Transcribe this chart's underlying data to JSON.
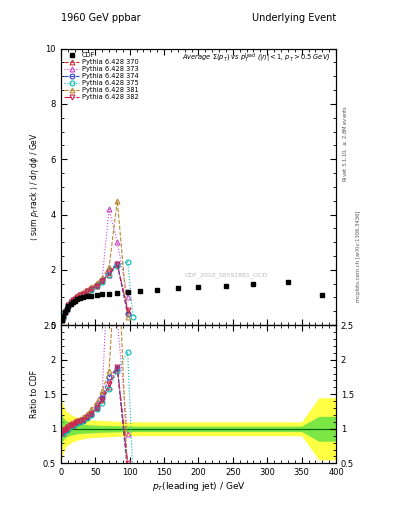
{
  "title_left": "1960 GeV ppbar",
  "title_right": "Underlying Event",
  "plot_title": "Average $\\Sigma(p_T)$ vs $p_T^{\\rm lead}$ ($|\\eta| < 1$, $p_T > 0.5$ GeV)",
  "ylabel_main": "$\\langle$ sum $p_T$rack $\\rangle$ / d$\\eta$ d$\\phi$ / GeV",
  "ylabel_ratio": "Ratio to CDF",
  "xlabel": "$p_T$(leading jet) / GeV",
  "watermark": "CDF_2010_S8591881_OCD",
  "rivet_text": "Rivet 3.1.10, $\\geq$ 2.8M events",
  "mcplots_text": "mcplots.cern.ch [arXiv:1306.3436]",
  "xlim": [
    0,
    400
  ],
  "ylim_main": [
    0,
    10
  ],
  "ylim_ratio": [
    0.5,
    2.5
  ],
  "ratio_yticks": [
    0.5,
    1.0,
    1.5,
    2.0,
    2.5
  ],
  "cdf_x": [
    1.5,
    3.5,
    6,
    8.5,
    11,
    14,
    17,
    20,
    24,
    28,
    32,
    38,
    44,
    52,
    60,
    70,
    82,
    97,
    115,
    140,
    170,
    200,
    240,
    280,
    330,
    380
  ],
  "cdf_y": [
    0.18,
    0.32,
    0.48,
    0.6,
    0.7,
    0.78,
    0.85,
    0.89,
    0.94,
    0.98,
    1.01,
    1.04,
    1.07,
    1.09,
    1.12,
    1.14,
    1.17,
    1.19,
    1.22,
    1.27,
    1.33,
    1.38,
    1.42,
    1.48,
    1.55,
    1.08
  ],
  "pythia_370_x": [
    1.5,
    3.5,
    6,
    8.5,
    11,
    14,
    17,
    20,
    24,
    28,
    32,
    38,
    44,
    52,
    60,
    70,
    82,
    97
  ],
  "pythia_370_y": [
    0.17,
    0.3,
    0.47,
    0.6,
    0.72,
    0.82,
    0.9,
    0.96,
    1.03,
    1.09,
    1.14,
    1.22,
    1.3,
    1.42,
    1.58,
    1.82,
    2.2,
    0.52
  ],
  "pythia_373_x": [
    1.5,
    3.5,
    6,
    8.5,
    11,
    14,
    17,
    20,
    24,
    28,
    32,
    38,
    44,
    52,
    60,
    70,
    82,
    97
  ],
  "pythia_373_y": [
    0.17,
    0.31,
    0.47,
    0.6,
    0.73,
    0.83,
    0.91,
    0.97,
    1.04,
    1.1,
    1.15,
    1.24,
    1.33,
    1.48,
    1.68,
    4.2,
    3.0,
    1.0
  ],
  "pythia_374_x": [
    1.5,
    3.5,
    6,
    8.5,
    11,
    14,
    17,
    20,
    24,
    28,
    32,
    38,
    44,
    52,
    60,
    70,
    82,
    97
  ],
  "pythia_374_y": [
    0.17,
    0.31,
    0.47,
    0.6,
    0.72,
    0.82,
    0.9,
    0.96,
    1.03,
    1.09,
    1.14,
    1.22,
    1.3,
    1.44,
    1.62,
    2.0,
    2.2,
    0.4
  ],
  "pythia_375_x": [
    1.5,
    3.5,
    6,
    8.5,
    11,
    14,
    17,
    20,
    24,
    28,
    32,
    38,
    44,
    52,
    60,
    70,
    82,
    97,
    105
  ],
  "pythia_375_y": [
    0.17,
    0.3,
    0.47,
    0.59,
    0.71,
    0.81,
    0.89,
    0.95,
    1.02,
    1.08,
    1.13,
    1.2,
    1.28,
    1.4,
    1.55,
    1.8,
    2.15,
    2.3,
    0.3
  ],
  "pythia_381_x": [
    1.5,
    3.5,
    6,
    8.5,
    11,
    14,
    17,
    20,
    24,
    28,
    32,
    38,
    44,
    52,
    60,
    70,
    82,
    97
  ],
  "pythia_381_y": [
    0.18,
    0.32,
    0.49,
    0.62,
    0.74,
    0.84,
    0.92,
    0.99,
    1.06,
    1.12,
    1.18,
    1.27,
    1.37,
    1.52,
    1.72,
    2.1,
    4.5,
    0.28
  ],
  "pythia_382_x": [
    1.5,
    3.5,
    6,
    8.5,
    11,
    14,
    17,
    20,
    24,
    28,
    32,
    38,
    44,
    52,
    60,
    70,
    82,
    97
  ],
  "pythia_382_y": [
    0.17,
    0.31,
    0.47,
    0.6,
    0.72,
    0.82,
    0.9,
    0.96,
    1.03,
    1.09,
    1.14,
    1.22,
    1.3,
    1.42,
    1.59,
    1.88,
    2.22,
    0.55
  ],
  "ratio_370_x": [
    1.5,
    3.5,
    6,
    8.5,
    11,
    14,
    17,
    20,
    24,
    28,
    32,
    38,
    44,
    52,
    60,
    70,
    82,
    97
  ],
  "ratio_370_y": [
    0.94,
    0.94,
    0.98,
    1.0,
    1.03,
    1.05,
    1.06,
    1.08,
    1.1,
    1.11,
    1.13,
    1.17,
    1.21,
    1.3,
    1.41,
    1.6,
    1.88,
    0.48
  ],
  "ratio_373_x": [
    1.5,
    3.5,
    6,
    8.5,
    11,
    14,
    17,
    20,
    24,
    28,
    32,
    38,
    44,
    52,
    60,
    70,
    82,
    97
  ],
  "ratio_373_y": [
    0.94,
    0.97,
    0.98,
    1.0,
    1.04,
    1.06,
    1.07,
    1.09,
    1.11,
    1.12,
    1.14,
    1.19,
    1.24,
    1.36,
    1.5,
    3.68,
    2.56,
    0.93
  ],
  "ratio_374_x": [
    1.5,
    3.5,
    6,
    8.5,
    11,
    14,
    17,
    20,
    24,
    28,
    32,
    38,
    44,
    52,
    60,
    70,
    82,
    97
  ],
  "ratio_374_y": [
    0.94,
    0.97,
    0.98,
    1.0,
    1.03,
    1.05,
    1.06,
    1.08,
    1.1,
    1.11,
    1.13,
    1.17,
    1.21,
    1.32,
    1.45,
    1.75,
    1.88,
    0.37
  ],
  "ratio_375_x": [
    1.5,
    3.5,
    6,
    8.5,
    11,
    14,
    17,
    20,
    24,
    28,
    32,
    38,
    44,
    52,
    60,
    70,
    82,
    97,
    105
  ],
  "ratio_375_y": [
    0.94,
    0.94,
    0.98,
    0.98,
    1.01,
    1.04,
    1.05,
    1.07,
    1.09,
    1.1,
    1.12,
    1.16,
    1.2,
    1.28,
    1.38,
    1.58,
    1.84,
    2.11,
    0.28
  ],
  "ratio_381_x": [
    1.5,
    3.5,
    6,
    8.5,
    11,
    14,
    17,
    20,
    24,
    28,
    32,
    38,
    44,
    52,
    60,
    70,
    82,
    97
  ],
  "ratio_381_y": [
    1.0,
    1.0,
    1.02,
    1.03,
    1.06,
    1.08,
    1.08,
    1.11,
    1.13,
    1.14,
    1.17,
    1.22,
    1.28,
    1.39,
    1.54,
    1.84,
    3.85,
    0.26
  ],
  "ratio_382_x": [
    1.5,
    3.5,
    6,
    8.5,
    11,
    14,
    17,
    20,
    24,
    28,
    32,
    38,
    44,
    52,
    60,
    70,
    82,
    97
  ],
  "ratio_382_y": [
    0.94,
    0.97,
    0.98,
    1.0,
    1.03,
    1.05,
    1.06,
    1.08,
    1.1,
    1.11,
    1.13,
    1.17,
    1.21,
    1.3,
    1.42,
    1.65,
    1.9,
    0.51
  ],
  "colors": {
    "cdf": "#000000",
    "370": "#cc3333",
    "373": "#cc44cc",
    "374": "#3344cc",
    "375": "#00bbbb",
    "381": "#bb8833",
    "382": "#cc2255"
  },
  "green_band_x": [
    0,
    2,
    7,
    15,
    25,
    40,
    60,
    100,
    150,
    200,
    250,
    300,
    350,
    375,
    400
  ],
  "green_band_low": [
    0.75,
    0.82,
    0.88,
    0.91,
    0.93,
    0.94,
    0.95,
    0.96,
    0.96,
    0.96,
    0.96,
    0.96,
    0.96,
    0.82,
    0.82
  ],
  "green_band_high": [
    1.25,
    1.18,
    1.12,
    1.09,
    1.07,
    1.06,
    1.05,
    1.04,
    1.04,
    1.04,
    1.04,
    1.04,
    1.04,
    1.18,
    1.18
  ],
  "yellow_band_x": [
    0,
    2,
    7,
    15,
    25,
    40,
    60,
    100,
    150,
    200,
    250,
    300,
    350,
    375,
    400
  ],
  "yellow_band_low": [
    0.5,
    0.62,
    0.74,
    0.8,
    0.84,
    0.87,
    0.88,
    0.9,
    0.9,
    0.9,
    0.9,
    0.9,
    0.9,
    0.55,
    0.55
  ],
  "yellow_band_high": [
    1.5,
    1.38,
    1.26,
    1.2,
    1.16,
    1.13,
    1.12,
    1.1,
    1.1,
    1.1,
    1.1,
    1.1,
    1.1,
    1.45,
    1.45
  ]
}
